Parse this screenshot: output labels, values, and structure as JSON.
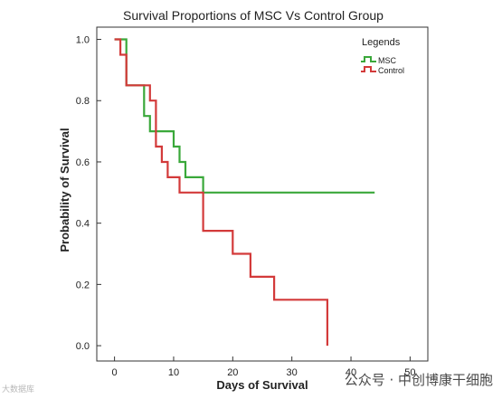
{
  "chart_data": {
    "type": "line",
    "step": true,
    "title": "Survival Proportions of MSC Vs Control Group",
    "xlabel": "Days of Survival",
    "ylabel": "Probability of Survival",
    "xlim": [
      -3,
      53
    ],
    "ylim": [
      -0.05,
      1.04
    ],
    "xticks": [
      0,
      10,
      20,
      30,
      40,
      50
    ],
    "yticks": [
      0.0,
      0.2,
      0.4,
      0.6,
      0.8,
      1.0
    ],
    "ytick_labels": [
      "0.0",
      "0.2",
      "0.4",
      "0.6",
      "0.8",
      "1.0"
    ],
    "legend_title": "Legends",
    "legend_position": "top-right",
    "grid": false,
    "series": [
      {
        "name": "MSC",
        "color": "#3aa83a",
        "x": [
          0,
          2,
          2,
          5,
          5,
          6,
          6,
          10,
          10,
          11,
          11,
          12,
          12,
          15,
          15,
          44
        ],
        "y": [
          1.0,
          1.0,
          0.85,
          0.85,
          0.75,
          0.75,
          0.7,
          0.7,
          0.65,
          0.65,
          0.6,
          0.6,
          0.55,
          0.55,
          0.5,
          0.5
        ]
      },
      {
        "name": "Control",
        "color": "#d33a3a",
        "x": [
          0,
          1,
          1,
          2,
          2,
          6,
          6,
          7,
          7,
          8,
          8,
          9,
          9,
          11,
          11,
          15,
          15,
          20,
          20,
          23,
          23,
          27,
          27,
          36,
          36
        ],
        "y": [
          1.0,
          1.0,
          0.95,
          0.95,
          0.85,
          0.85,
          0.8,
          0.8,
          0.65,
          0.65,
          0.6,
          0.6,
          0.55,
          0.55,
          0.5,
          0.5,
          0.375,
          0.375,
          0.3,
          0.3,
          0.225,
          0.225,
          0.15,
          0.15,
          0.0
        ]
      }
    ]
  },
  "watermarks": {
    "right": "公众号 · 中创博康干细胞",
    "left": "大数据库"
  }
}
